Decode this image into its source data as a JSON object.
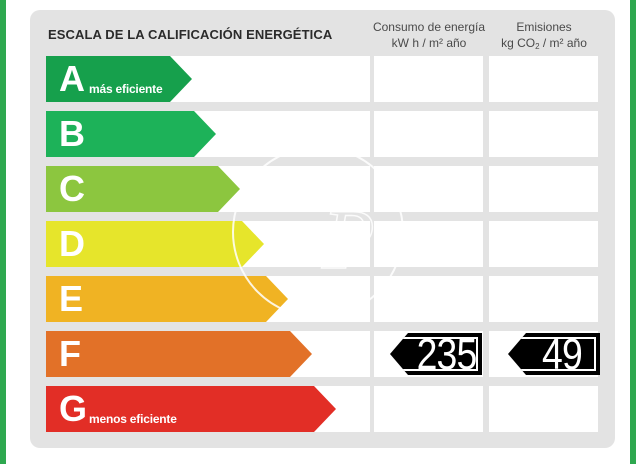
{
  "title": "ESCALA DE LA CALIFICACIÓN ENERGÉTICA",
  "columns": {
    "energy": {
      "line1": "Consumo de energía",
      "line2": "kW h  / m² año"
    },
    "emissions": {
      "line1": "Emisiones",
      "line2_pre": "kg CO",
      "line2_sub": "2",
      "line2_post": "  / m² año"
    }
  },
  "grades": [
    {
      "letter": "A",
      "sublabel": "más eficiente",
      "color": "#16a04c"
    },
    {
      "letter": "B",
      "sublabel": "",
      "color": "#1db259"
    },
    {
      "letter": "C",
      "sublabel": "",
      "color": "#8cc63f"
    },
    {
      "letter": "D",
      "sublabel": "",
      "color": "#e6e52b"
    },
    {
      "letter": "E",
      "sublabel": "",
      "color": "#f0b323"
    },
    {
      "letter": "F",
      "sublabel": "",
      "color": "#e27128"
    },
    {
      "letter": "G",
      "sublabel": "menos eficiente",
      "color": "#e22e26"
    }
  ],
  "rating": {
    "grade": "F",
    "energy_value": "235",
    "emissions_value": "49"
  },
  "watermark_icon": "ap-logo-watermark"
}
